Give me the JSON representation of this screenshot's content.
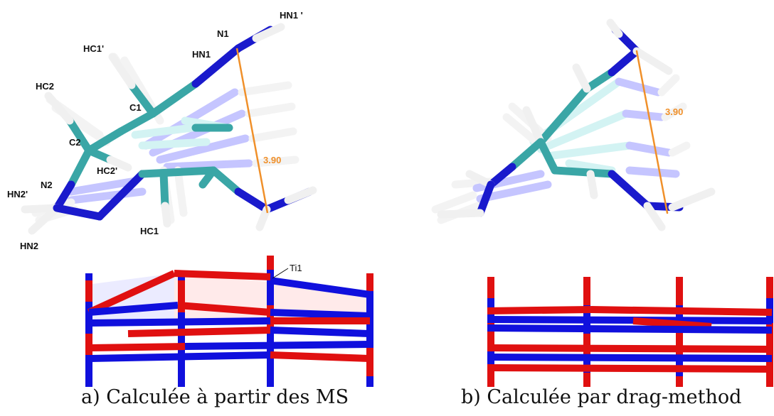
{
  "panel_a": {
    "caption": "a) Calculée à partir des MS",
    "distance": "3.90",
    "labels": {
      "hn1p": "HN1 '",
      "n1": "N1",
      "hn1": "HN1",
      "hc1p": "HC1'",
      "hc2": "HC2",
      "c1": "C1",
      "c2": "C2",
      "hc2p": "HC2'",
      "n2": "N2",
      "hn2p": "HN2'",
      "hn2": "HN2",
      "hc1": "HC1",
      "ti1": "Ti1"
    }
  },
  "panel_b": {
    "caption": "b) Calculée par drag-method",
    "distance": "3.90"
  },
  "colors": {
    "nitrogen": "#1a1acc",
    "carbon": "#3aa6a6",
    "hydrogen": "#f2f2f2",
    "oxygen": "#e01010",
    "titanium": "#1010dd",
    "distance_line": "#f0902a"
  }
}
